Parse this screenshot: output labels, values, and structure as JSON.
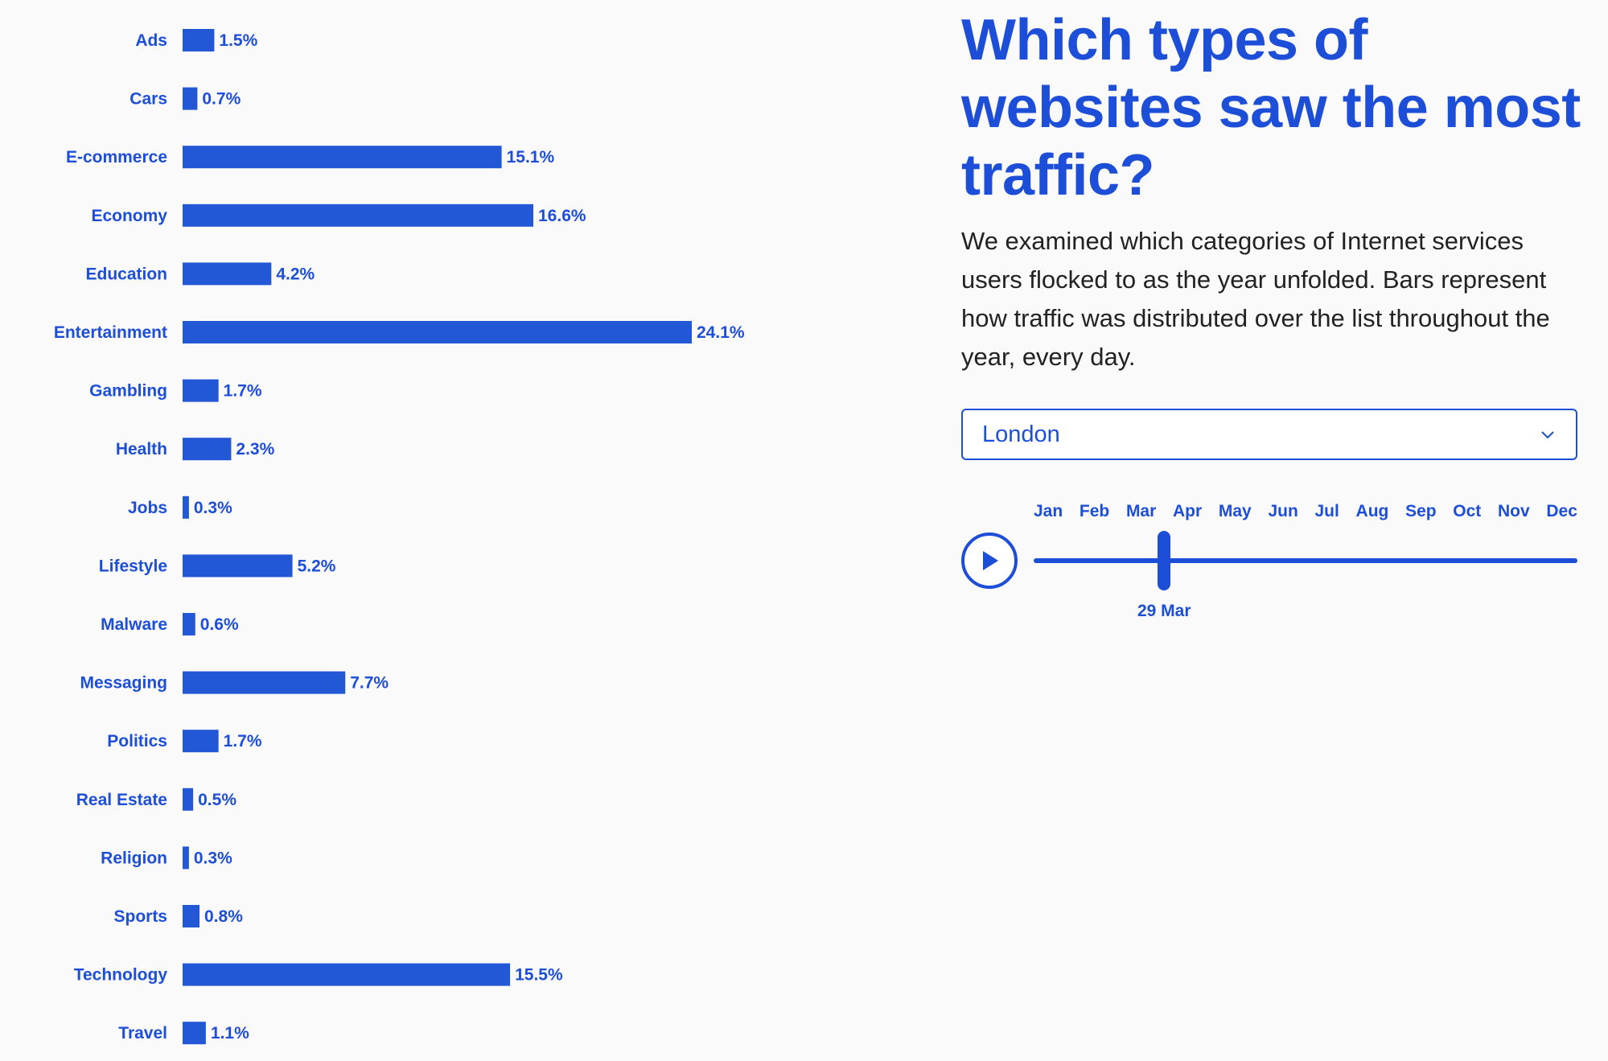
{
  "headline": "Which types of websites saw the most traffic?",
  "description": "We examined which categories of Internet services users flocked to as the year unfolded. Bars represent how traffic was distributed over the list throughout the year, every day.",
  "location_select": {
    "value": "London",
    "icon": "chevron-down-icon"
  },
  "timeline": {
    "play_icon": "play-icon",
    "months": [
      "Jan",
      "Feb",
      "Mar",
      "Apr",
      "May",
      "Jun",
      "Jul",
      "Aug",
      "Sep",
      "Oct",
      "Nov",
      "Dec"
    ],
    "current_date_label": "29 Mar",
    "position_fraction": 0.24
  },
  "colors": {
    "accent": "#1d4ed8",
    "bar": "#2257d6",
    "background": "#fafafa"
  },
  "chart_data": {
    "type": "bar",
    "orientation": "horizontal",
    "categories": [
      "Ads",
      "Cars",
      "E-commerce",
      "Economy",
      "Education",
      "Entertainment",
      "Gambling",
      "Health",
      "Jobs",
      "Lifestyle",
      "Malware",
      "Messaging",
      "Politics",
      "Real Estate",
      "Religion",
      "Sports",
      "Technology",
      "Travel"
    ],
    "values": [
      1.5,
      0.7,
      15.1,
      16.6,
      4.2,
      24.1,
      1.7,
      2.3,
      0.3,
      5.2,
      0.6,
      7.7,
      1.7,
      0.5,
      0.3,
      0.8,
      15.5,
      1.1
    ],
    "value_labels": [
      "1.5%",
      "0.7%",
      "15.1%",
      "16.6%",
      "4.2%",
      "24.1%",
      "1.7%",
      "2.3%",
      "0.3%",
      "5.2%",
      "0.6%",
      "7.7%",
      "1.7%",
      "0.5%",
      "0.3%",
      "0.8%",
      "15.5%",
      "1.1%"
    ],
    "unit": "%",
    "grid": false,
    "legend": false
  }
}
